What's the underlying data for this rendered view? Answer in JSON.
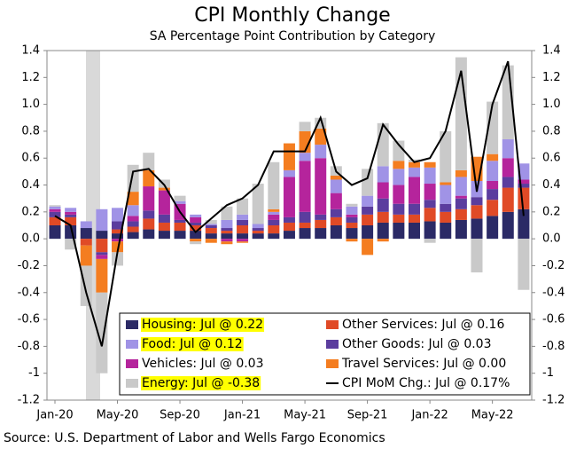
{
  "chart_data": {
    "type": "bar",
    "title": "CPI Monthly Change",
    "subtitle": "SA Percentage Point Contribution by Category",
    "source": "Source: U.S. Department of Labor and Wells Fargo Economics",
    "categories": [
      "Jan-20",
      null,
      null,
      null,
      "May-20",
      null,
      null,
      null,
      "Sep-20",
      null,
      null,
      null,
      "Jan-21",
      null,
      null,
      null,
      "May-21",
      null,
      null,
      null,
      "Sep-21",
      null,
      null,
      null,
      "Jan-22",
      null,
      null,
      null,
      "May-22",
      null,
      null
    ],
    "stacked": true,
    "series": [
      {
        "name": "Housing: Jul @ 0.22",
        "color": "#2b2a66",
        "highlight": true,
        "values": [
          0.1,
          0.1,
          0.08,
          0.06,
          0.04,
          0.05,
          0.07,
          0.06,
          0.06,
          0.06,
          0.04,
          0.04,
          0.04,
          0.04,
          0.04,
          0.06,
          0.08,
          0.08,
          0.1,
          0.08,
          0.1,
          0.12,
          0.12,
          0.12,
          0.13,
          0.12,
          0.14,
          0.15,
          0.17,
          0.2,
          0.22
        ]
      },
      {
        "name": "Other Services: Jul @ 0.16",
        "color": "#e04a26",
        "highlight": false,
        "values": [
          0.06,
          0.06,
          -0.05,
          -0.1,
          0.03,
          0.04,
          0.08,
          0.06,
          0.06,
          0.04,
          0.04,
          0.02,
          0.06,
          0.02,
          0.06,
          0.06,
          0.04,
          0.06,
          0.06,
          0.04,
          0.08,
          0.08,
          0.06,
          0.06,
          0.1,
          0.08,
          0.08,
          0.1,
          0.12,
          0.18,
          0.16
        ]
      },
      {
        "name": "Other Goods: Jul @ 0.03",
        "color": "#5b3d9e",
        "highlight": false,
        "values": [
          0.04,
          0.02,
          0.0,
          -0.02,
          0.06,
          0.04,
          0.06,
          0.06,
          0.02,
          0.02,
          0.02,
          0.02,
          0.04,
          0.02,
          0.04,
          0.04,
          0.08,
          0.04,
          0.06,
          0.04,
          0.06,
          0.1,
          0.08,
          0.08,
          0.06,
          0.06,
          0.08,
          0.06,
          0.08,
          0.08,
          0.03
        ]
      },
      {
        "name": "Vehicles: Jul @ 0.03",
        "color": "#b5249c",
        "highlight": false,
        "values": [
          0.02,
          0.02,
          0.0,
          -0.03,
          -0.02,
          0.04,
          0.18,
          0.18,
          0.12,
          0.04,
          0.0,
          -0.02,
          -0.02,
          0.0,
          0.04,
          0.3,
          0.38,
          0.42,
          0.12,
          0.02,
          0.0,
          0.12,
          0.14,
          0.2,
          0.12,
          0.0,
          0.02,
          0.0,
          0.06,
          0.14,
          0.03
        ]
      },
      {
        "name": "Food: Jul @ 0.12",
        "color": "#a093e6",
        "highlight": true,
        "values": [
          0.02,
          0.03,
          0.05,
          0.16,
          0.1,
          0.08,
          0.0,
          0.0,
          0.02,
          0.02,
          0.01,
          0.06,
          0.04,
          0.03,
          0.02,
          0.05,
          0.06,
          0.1,
          0.1,
          0.06,
          0.08,
          0.12,
          0.12,
          0.07,
          0.12,
          0.14,
          0.14,
          0.12,
          0.15,
          0.14,
          0.12
        ]
      },
      {
        "name": "Travel Services: Jul @ 0.00",
        "color": "#f47d20",
        "highlight": false,
        "values": [
          0.0,
          0.0,
          -0.15,
          -0.25,
          -0.08,
          0.1,
          0.12,
          0.02,
          0.0,
          -0.02,
          -0.03,
          -0.02,
          -0.01,
          0.0,
          0.02,
          0.2,
          0.16,
          0.12,
          0.03,
          -0.02,
          -0.12,
          -0.02,
          0.06,
          0.04,
          0.04,
          0.02,
          0.05,
          0.18,
          0.05,
          0.0,
          0.0
        ]
      },
      {
        "name": "Energy: Jul @ -0.38",
        "color": "#c9c9c9",
        "highlight": true,
        "values": [
          0.01,
          -0.08,
          -0.3,
          -0.6,
          -0.1,
          0.2,
          0.13,
          0.06,
          0.04,
          -0.02,
          0.03,
          0.1,
          0.12,
          0.3,
          0.35,
          0.0,
          0.07,
          0.08,
          0.07,
          0.02,
          0.2,
          0.32,
          0.15,
          0.02,
          -0.03,
          0.38,
          0.84,
          -0.25,
          0.39,
          0.55,
          -0.38
        ]
      }
    ],
    "line": {
      "name": "CPI MoM Chg.: Jul @ 0.17%",
      "color": "#000000",
      "values": [
        0.17,
        0.1,
        -0.4,
        -0.8,
        -0.1,
        0.5,
        0.52,
        0.4,
        0.2,
        0.05,
        0.15,
        0.25,
        0.3,
        0.4,
        0.65,
        0.65,
        0.65,
        0.9,
        0.5,
        0.4,
        0.45,
        0.85,
        0.7,
        0.57,
        0.6,
        0.8,
        1.25,
        0.35,
        1.0,
        1.32,
        0.17
      ]
    },
    "ylim": [
      -1.2,
      1.4
    ],
    "yticks": [
      -1.2,
      -1.0,
      -0.8,
      -0.6,
      -0.4,
      -0.2,
      {
        "value": 0,
        "label": "0.0"
      },
      0.2,
      0.4,
      0.6,
      0.8,
      {
        "value": 1,
        "label": "1.0"
      },
      1.2,
      1.4
    ],
    "y2lim": [
      -1.2,
      1.4
    ],
    "y2ticks": [
      -1.2,
      -1.0,
      -0.8,
      -0.6,
      -0.4,
      -0.2,
      {
        "value": 0,
        "label": "0.0"
      },
      0.2,
      0.4,
      0.6,
      0.8,
      {
        "value": 1,
        "label": "1.0"
      },
      1.2,
      1.4
    ],
    "legend": "lower-right"
  }
}
